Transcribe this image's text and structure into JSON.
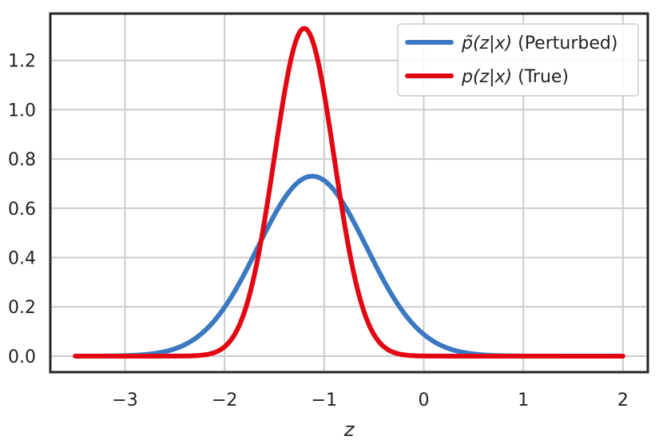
{
  "chart_data": {
    "type": "line",
    "title": "",
    "xlabel": "z",
    "ylabel": "",
    "xlim": [
      -3.75,
      2.25
    ],
    "ylim": [
      -0.065,
      1.39
    ],
    "xticks": [
      -3,
      -2,
      -1,
      0,
      1,
      2
    ],
    "xtick_labels": [
      "−3",
      "−2",
      "−1",
      "0",
      "1",
      "2"
    ],
    "yticks": [
      0.0,
      0.2,
      0.4,
      0.6,
      0.8,
      1.0,
      1.2
    ],
    "ytick_labels": [
      "0.0",
      "0.2",
      "0.4",
      "0.6",
      "0.8",
      "1.0",
      "1.2"
    ],
    "grid": true,
    "legend_position": "top-right",
    "x_range": [
      -3.5,
      2.0
    ],
    "series": [
      {
        "name": "p̃(z|x) (Perturbed)",
        "legend_math": "p̃(z|x)",
        "legend_suffix": " (Perturbed)",
        "color": "#3a78c2",
        "distribution": "normal",
        "mean": -1.12,
        "std": 0.545,
        "peak": 0.73
      },
      {
        "name": "p(z|x) (True)",
        "legend_math": "p(z|x)",
        "legend_suffix": " (True)",
        "color": "#e30512",
        "distribution": "normal",
        "mean": -1.2,
        "std": 0.3,
        "peak": 1.33
      }
    ]
  }
}
